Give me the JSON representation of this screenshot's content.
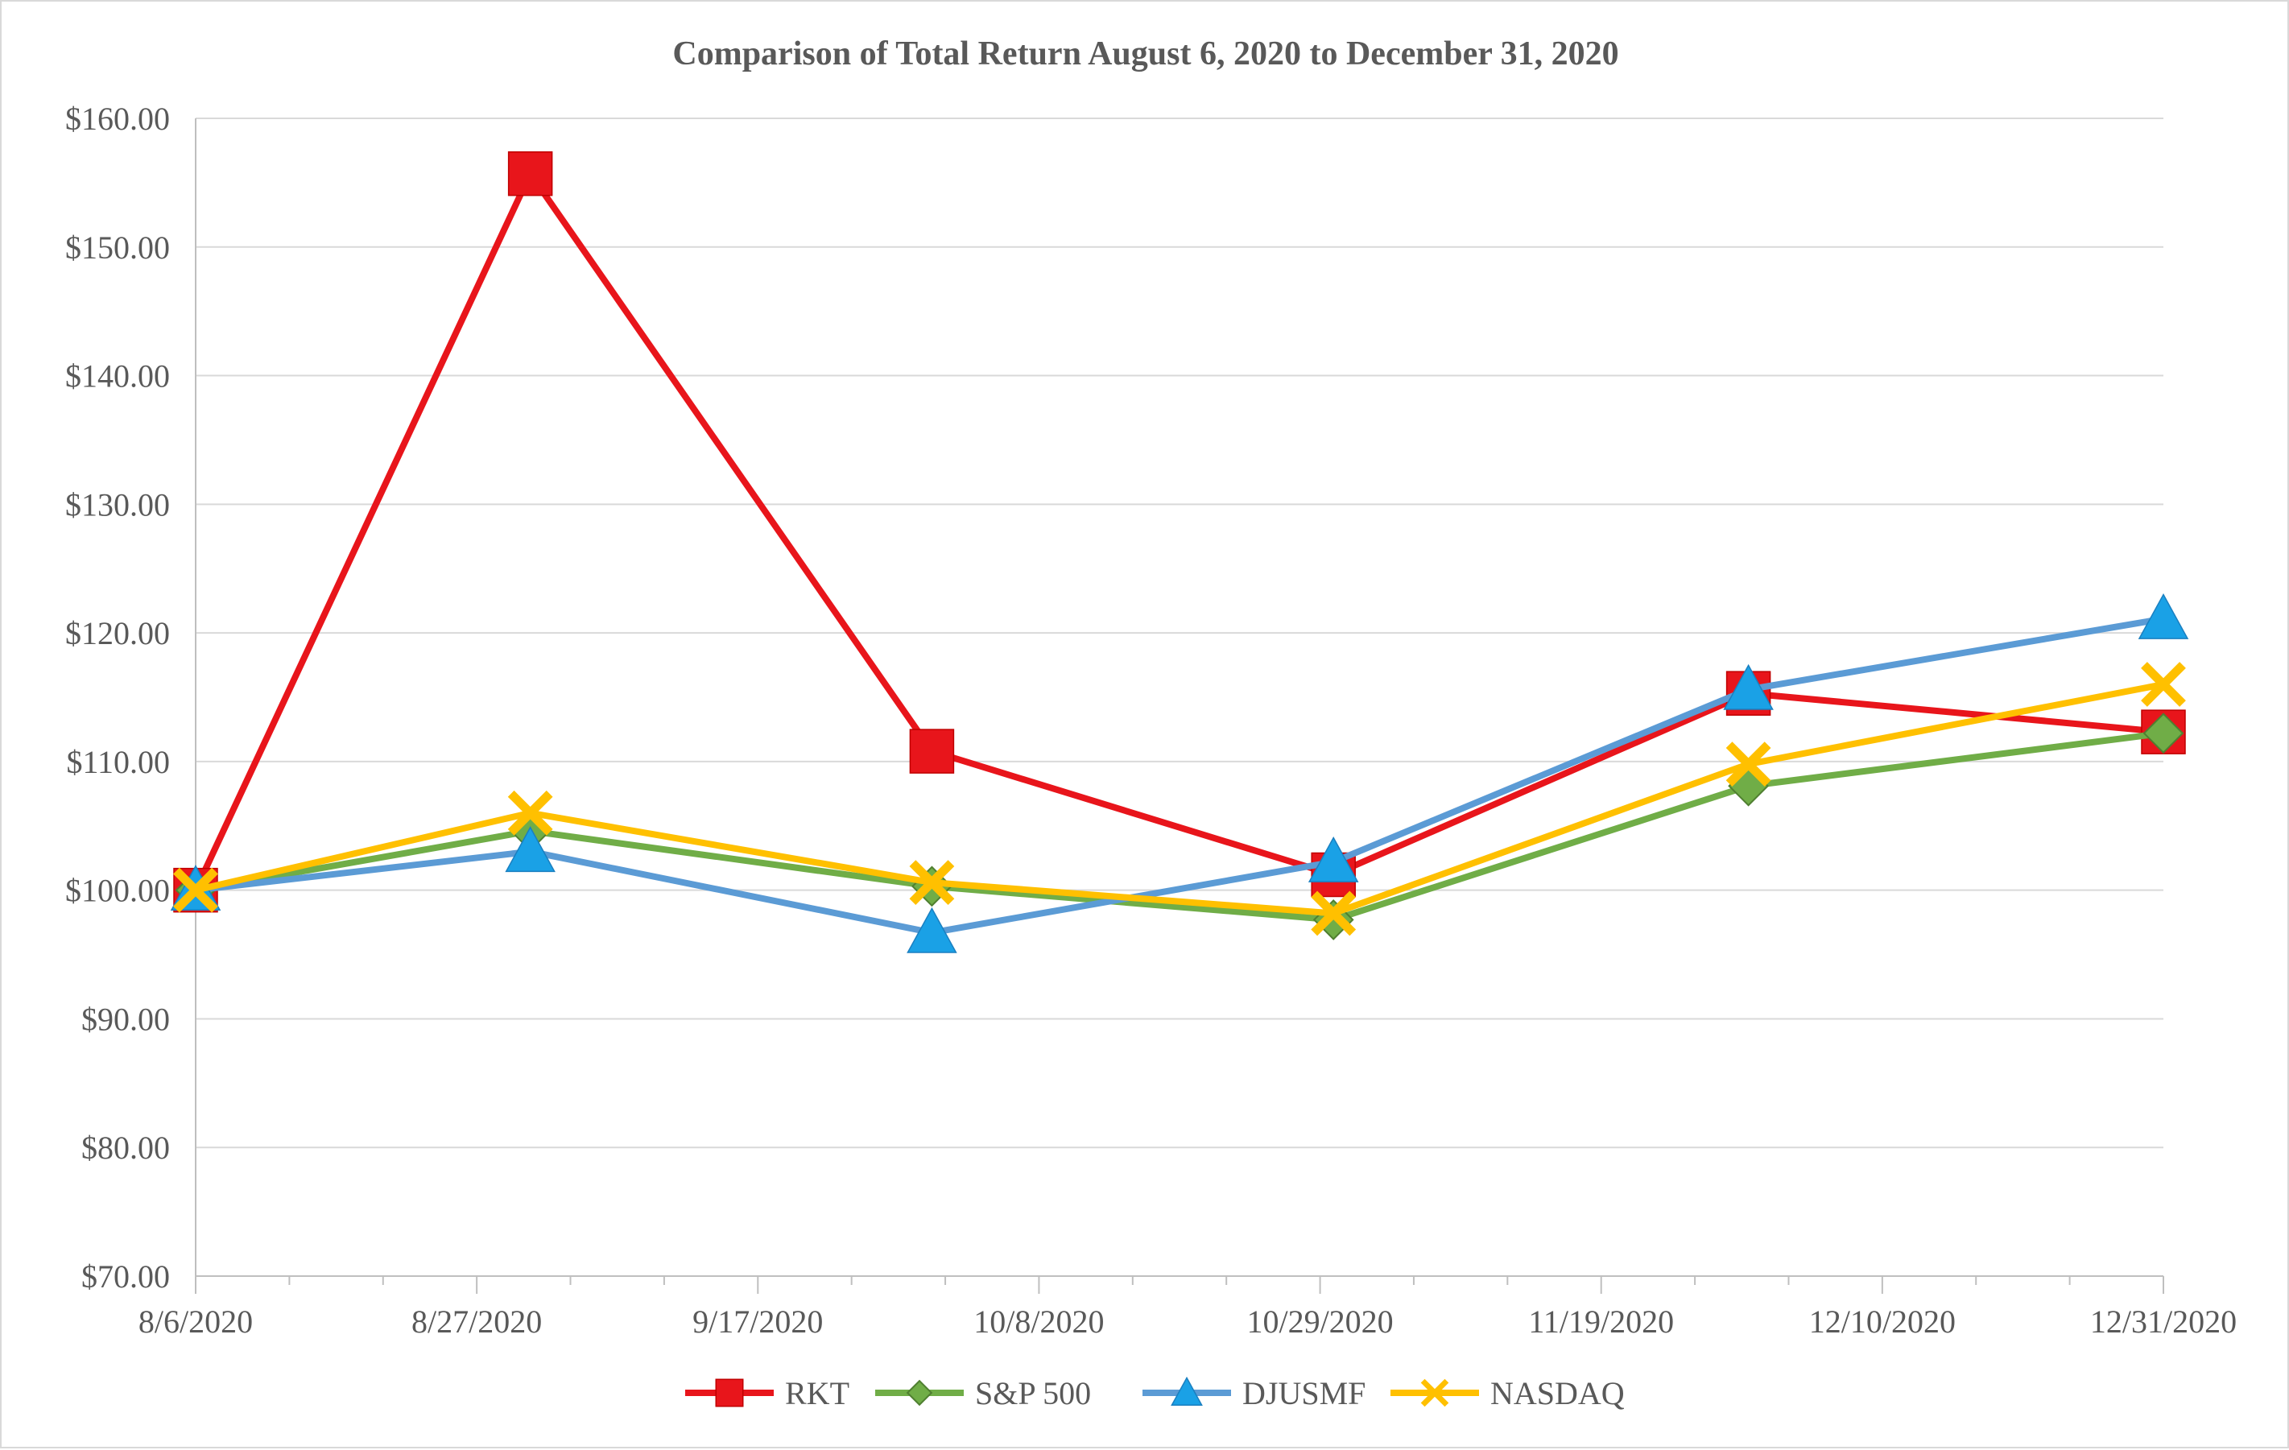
{
  "chart_data": {
    "type": "line",
    "title": "Comparison of Total Return August 6, 2020 to December 31, 2020",
    "xlabel": "",
    "ylabel": "",
    "x_ticks": [
      {
        "day": 0,
        "label": "8/6/2020"
      },
      {
        "day": 21,
        "label": "8/27/2020"
      },
      {
        "day": 42,
        "label": "9/17/2020"
      },
      {
        "day": 63,
        "label": "10/8/2020"
      },
      {
        "day": 84,
        "label": "10/29/2020"
      },
      {
        "day": 105,
        "label": "11/19/2020"
      },
      {
        "day": 126,
        "label": "12/10/2020"
      },
      {
        "day": 147,
        "label": "12/31/2020"
      }
    ],
    "xlim": [
      0,
      147
    ],
    "y_ticks": [
      70,
      80,
      90,
      100,
      110,
      120,
      130,
      140,
      150,
      160
    ],
    "y_tick_labels": [
      "$70.00",
      "$80.00",
      "$90.00",
      "$100.00",
      "$110.00",
      "$120.00",
      "$130.00",
      "$140.00",
      "$150.00",
      "$160.00"
    ],
    "ylim": [
      70,
      160
    ],
    "x_days": [
      0,
      25,
      55,
      85,
      116,
      147
    ],
    "grid": "horizontal",
    "legend_position": "bottom",
    "series": [
      {
        "name": "RKT",
        "color": "#e8151b",
        "marker": "square",
        "values": [
          100.0,
          155.7,
          110.8,
          101.2,
          115.3,
          112.3
        ]
      },
      {
        "name": "S&P 500",
        "color": "#70ad47",
        "marker": "diamond",
        "values": [
          100.0,
          104.6,
          100.3,
          97.7,
          108.1,
          112.2
        ]
      },
      {
        "name": "DJUSMF",
        "color": "#5b9bd5",
        "marker": "triangle",
        "values": [
          100.0,
          103.0,
          96.7,
          102.2,
          115.6,
          121.1
        ]
      },
      {
        "name": "NASDAQ",
        "color": "#ffc000",
        "marker": "x",
        "values": [
          100.0,
          106.0,
          100.6,
          98.2,
          109.8,
          116.0
        ]
      }
    ]
  }
}
